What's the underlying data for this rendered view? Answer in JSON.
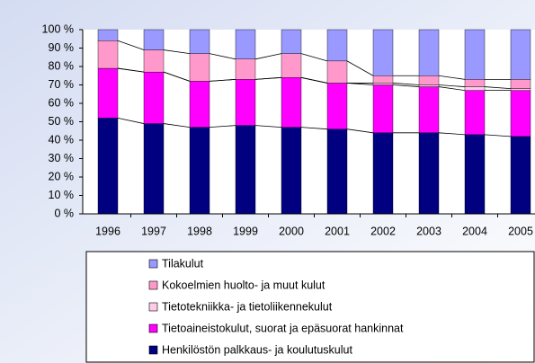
{
  "chart_data": {
    "type": "stacked_bar_100",
    "categories": [
      "1996",
      "1997",
      "1998",
      "1999",
      "2000",
      "2001",
      "2002",
      "2003",
      "2004",
      "2005"
    ],
    "series": [
      {
        "name": "Henkilöstön palkkaus- ja koulutuskulut",
        "color": "#000080",
        "values": [
          52,
          49,
          47,
          48,
          47,
          46,
          44,
          44,
          43,
          42
        ]
      },
      {
        "name": "Tietoaineistokulut, suorat ja epäsuorat hankinnat",
        "color": "#ff00ff",
        "values": [
          27,
          28,
          25,
          25,
          27,
          25,
          26,
          25,
          24,
          25
        ]
      },
      {
        "name": "Tietotekniikka- ja tietoliikennekulut",
        "color": "#ffcce8",
        "values": [
          0,
          0,
          0,
          0,
          0,
          0,
          1,
          1,
          2,
          1
        ]
      },
      {
        "name": "Kokoelmien huolto- ja muut kulut",
        "color": "#ff99cc",
        "values": [
          15,
          12,
          15,
          11,
          13,
          12,
          4,
          5,
          4,
          5
        ]
      },
      {
        "name": "Tilakulut",
        "color": "#9999ff",
        "values": [
          6,
          11,
          13,
          16,
          13,
          17,
          25,
          25,
          27,
          27
        ]
      }
    ],
    "ylim": [
      0,
      100
    ],
    "yticks": [
      {
        "value": 0,
        "label": "0 %"
      },
      {
        "value": 10,
        "label": "10 %"
      },
      {
        "value": 20,
        "label": "20 %"
      },
      {
        "value": 30,
        "label": "30 %"
      },
      {
        "value": 40,
        "label": "40 %"
      },
      {
        "value": 50,
        "label": "50 %"
      },
      {
        "value": 60,
        "label": "60 %"
      },
      {
        "value": 70,
        "label": "70 %"
      },
      {
        "value": 80,
        "label": "80 %"
      },
      {
        "value": 90,
        "label": "90 %"
      },
      {
        "value": 100,
        "label": "100 %"
      }
    ],
    "legend": "bottom"
  }
}
